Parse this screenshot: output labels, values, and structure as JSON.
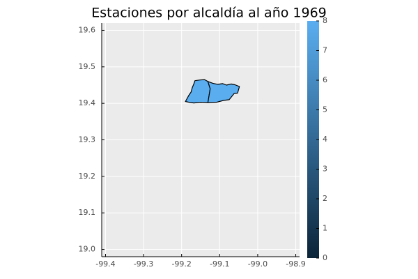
{
  "title": "Estaciones por alcaldía al año 1969",
  "colors": {
    "panel_background": "#ebebeb",
    "grid": "#ffffff",
    "region_fill": "#5aaef0",
    "region_stroke": "#000000",
    "colorbar_low": "#0b2438",
    "colorbar_high": "#5aaef0"
  },
  "chart_data": {
    "type": "choropleth",
    "title": "Estaciones por alcaldía al año 1969",
    "grid": true,
    "legend_placement": "right",
    "x_axis": {
      "lim": [
        -99.41,
        -98.89
      ],
      "ticks": [
        -99.4,
        -99.3,
        -99.2,
        -99.1,
        -99.0,
        -98.9
      ],
      "tick_labels": [
        "-99.4",
        "-99.3",
        "-99.2",
        "-99.1",
        "-99.0",
        "-98.9"
      ]
    },
    "y_axis": {
      "lim": [
        18.98,
        19.62
      ],
      "ticks": [
        19.0,
        19.1,
        19.2,
        19.3,
        19.4,
        19.5,
        19.6
      ],
      "tick_labels": [
        "19.0",
        "19.1",
        "19.2",
        "19.3",
        "19.4",
        "19.5",
        "19.6"
      ]
    },
    "colorbar": {
      "range": [
        0,
        8
      ],
      "ticks": [
        0,
        1,
        2,
        3,
        4,
        5,
        6,
        7,
        8
      ],
      "tick_labels": [
        "0",
        "1",
        "2",
        "3",
        "4",
        "5",
        "6",
        "7",
        "8"
      ]
    },
    "regions": [
      {
        "value": 8,
        "boundary": [
          [
            -99.19,
            19.405
          ],
          [
            -99.181,
            19.422
          ],
          [
            -99.175,
            19.431
          ],
          [
            -99.172,
            19.443
          ],
          [
            -99.168,
            19.453
          ],
          [
            -99.165,
            19.462
          ],
          [
            -99.152,
            19.464
          ],
          [
            -99.14,
            19.465
          ],
          [
            -99.131,
            19.46
          ],
          [
            -99.125,
            19.44
          ],
          [
            -99.128,
            19.42
          ],
          [
            -99.131,
            19.402
          ],
          [
            -99.15,
            19.403
          ],
          [
            -99.168,
            19.401
          ],
          [
            -99.181,
            19.403
          ]
        ]
      },
      {
        "value": 8,
        "boundary": [
          [
            -99.131,
            19.46
          ],
          [
            -99.118,
            19.455
          ],
          [
            -99.105,
            19.452
          ],
          [
            -99.092,
            19.454
          ],
          [
            -99.082,
            19.45
          ],
          [
            -99.07,
            19.453
          ],
          [
            -99.06,
            19.451
          ],
          [
            -99.048,
            19.446
          ],
          [
            -99.053,
            19.428
          ],
          [
            -99.062,
            19.427
          ],
          [
            -99.075,
            19.41
          ],
          [
            -99.09,
            19.408
          ],
          [
            -99.108,
            19.403
          ],
          [
            -99.131,
            19.402
          ],
          [
            -99.128,
            19.42
          ],
          [
            -99.125,
            19.44
          ]
        ]
      }
    ]
  }
}
